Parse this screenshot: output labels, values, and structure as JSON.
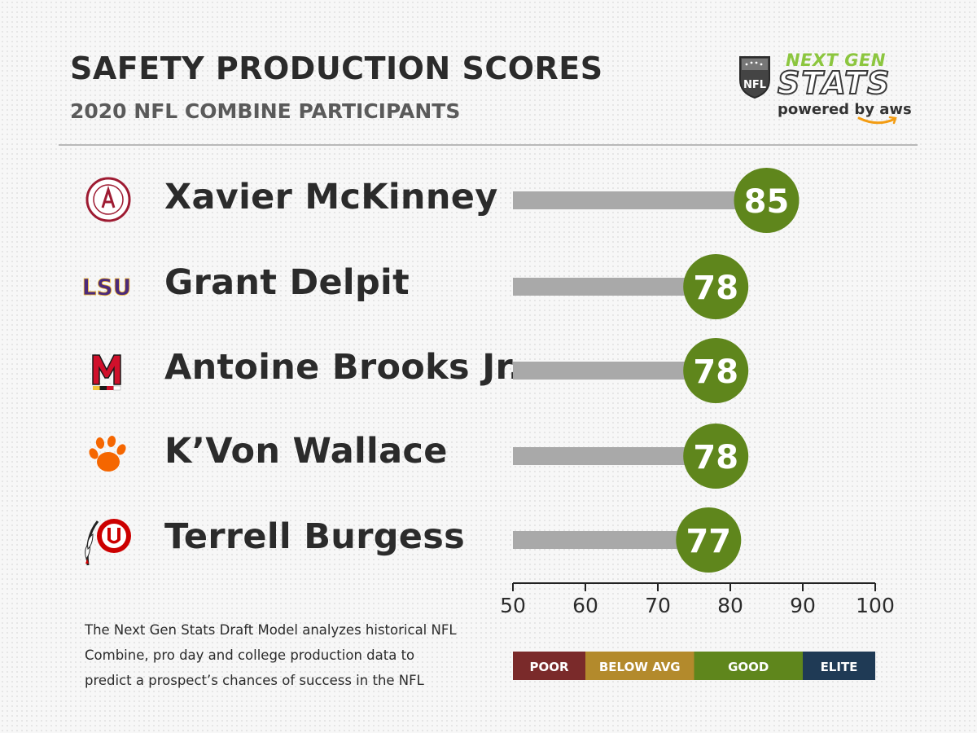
{
  "header": {
    "title": "SAFETY PRODUCTION SCORES",
    "subtitle": "2020 NFL COMBINE PARTICIPANTS"
  },
  "brand": {
    "league": "NFL",
    "next_gen": "NEXT GEN",
    "stats": "STATS",
    "powered_by": "powered by aws",
    "accent_color": "#8cc63f"
  },
  "players": [
    {
      "name": "Xavier McKinney",
      "logo": "alabama-logo-icon"
    },
    {
      "name": "Grant Delpit",
      "logo": "lsu-logo-icon",
      "logo_text": "LSU"
    },
    {
      "name": "Antoine Brooks Jr.",
      "logo": "maryland-logo-icon"
    },
    {
      "name": "K’Von Wallace",
      "logo": "clemson-paw-logo-icon"
    },
    {
      "name": "Terrell Burgess",
      "logo": "utah-logo-icon"
    }
  ],
  "chart_data": {
    "type": "bar",
    "orientation": "horizontal",
    "categories": [
      "Xavier McKinney",
      "Grant Delpit",
      "Antoine Brooks Jr.",
      "K’Von Wallace",
      "Terrell Burgess"
    ],
    "values": [
      85,
      78,
      78,
      78,
      77
    ],
    "data_labels": [
      "85",
      "78",
      "78",
      "78",
      "77"
    ],
    "xlim": [
      50,
      100
    ],
    "xticks": [
      50,
      60,
      70,
      80,
      90,
      100
    ],
    "xtick_labels": [
      "50",
      "60",
      "70",
      "80",
      "90",
      "100"
    ],
    "grid": false,
    "bar_color": "#a9a9a9",
    "marker_color": "#5f861c",
    "legend": {
      "placement": "bottom",
      "bands": [
        {
          "label": "POOR",
          "range": [
            50,
            60
          ],
          "color": "#7a2a2a"
        },
        {
          "label": "BELOW AVG",
          "range": [
            60,
            75
          ],
          "color": "#b38a2c"
        },
        {
          "label": "GOOD",
          "range": [
            75,
            90
          ],
          "color": "#5f861c"
        },
        {
          "label": "ELITE",
          "range": [
            90,
            100
          ],
          "color": "#1f3a55"
        }
      ]
    }
  },
  "footnote": "The Next Gen Stats Draft Model analyzes historical NFL Combine, pro day and college production data to predict a prospect’s chances of success in the NFL"
}
